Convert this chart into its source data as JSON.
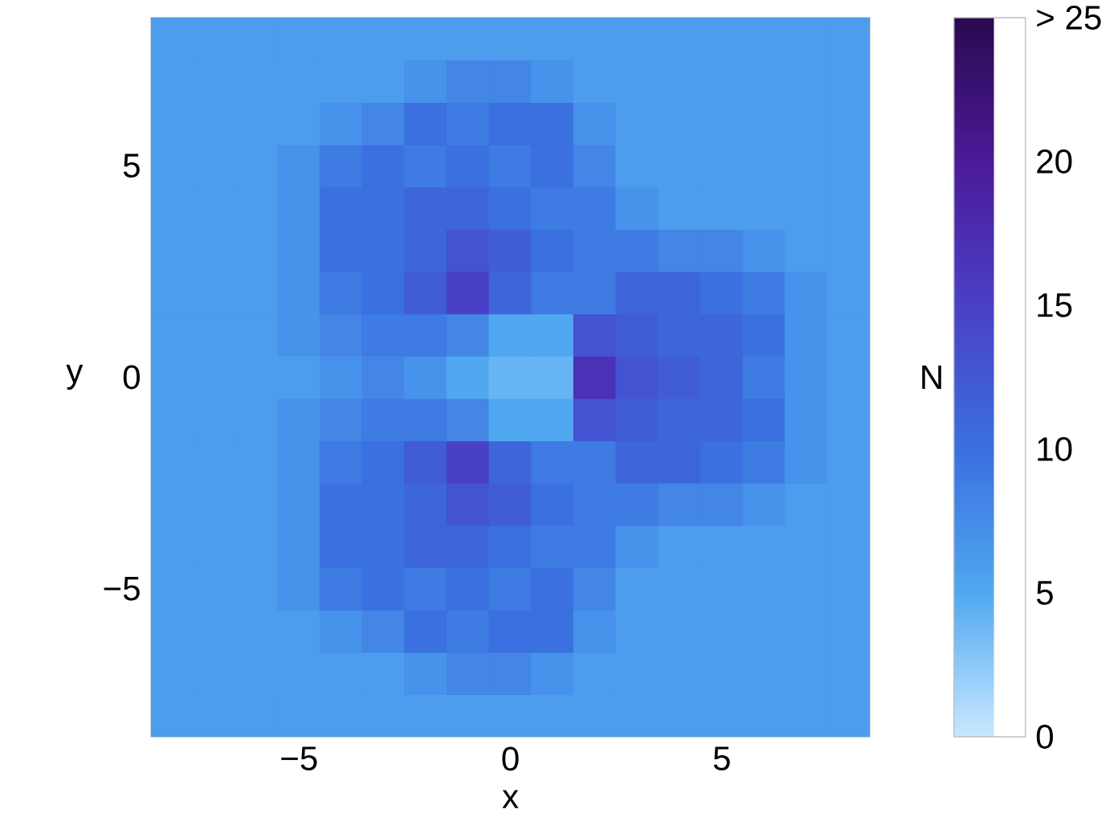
{
  "chart_data": {
    "type": "heatmap",
    "xlabel": "x",
    "ylabel": "y",
    "clabel": "N",
    "categories": [
      null,
      null,
      null,
      "−5",
      null,
      null,
      null,
      null,
      "0",
      null,
      null,
      null,
      null,
      "5",
      null,
      null,
      null
    ],
    "y_categories": [
      null,
      null,
      null,
      "5",
      null,
      null,
      null,
      null,
      "0",
      null,
      null,
      null,
      null,
      "−5",
      null,
      null,
      null
    ],
    "clim": [
      0,
      25
    ],
    "cticks": [
      0,
      5,
      10,
      15,
      20,
      {
        "value": 25,
        "label": "> 25"
      }
    ],
    "cells": [
      [
        6,
        6,
        6,
        6,
        6,
        6,
        6,
        6,
        6,
        6,
        6,
        6,
        6,
        6,
        6,
        6,
        6
      ],
      [
        6,
        6,
        6,
        6,
        6,
        6,
        7,
        8,
        8,
        7,
        6,
        6,
        6,
        6,
        6,
        6,
        6
      ],
      [
        6,
        6,
        6,
        6,
        7,
        8,
        10,
        9,
        10,
        10,
        7,
        6,
        6,
        6,
        6,
        6,
        6
      ],
      [
        6,
        6,
        6,
        7,
        9,
        10,
        9,
        10,
        9,
        10,
        8,
        6,
        6,
        6,
        6,
        6,
        6
      ],
      [
        6,
        6,
        6,
        7,
        10,
        10,
        11,
        11,
        10,
        9,
        9,
        7,
        6,
        6,
        6,
        6,
        6
      ],
      [
        6,
        6,
        6,
        7,
        10,
        10,
        11,
        13,
        12,
        10,
        9,
        9,
        8,
        8,
        7,
        6,
        6
      ],
      [
        6,
        6,
        6,
        7,
        9,
        10,
        12,
        15,
        11,
        9,
        9,
        11,
        11,
        10,
        9,
        7,
        6
      ],
      [
        6,
        6,
        6,
        7,
        8,
        9,
        9,
        8,
        5,
        5,
        13,
        12,
        11,
        11,
        10,
        7,
        6
      ],
      [
        6,
        6,
        6,
        6,
        7,
        8,
        7,
        5,
        4,
        4,
        17,
        13,
        12,
        11,
        9,
        7,
        6
      ],
      [
        6,
        6,
        6,
        7,
        8,
        9,
        9,
        8,
        5,
        5,
        13,
        12,
        11,
        11,
        10,
        7,
        6
      ],
      [
        6,
        6,
        6,
        7,
        9,
        10,
        12,
        15,
        11,
        9,
        9,
        11,
        11,
        10,
        9,
        7,
        6
      ],
      [
        6,
        6,
        6,
        7,
        10,
        10,
        11,
        13,
        12,
        10,
        9,
        9,
        8,
        8,
        7,
        6,
        6
      ],
      [
        6,
        6,
        6,
        7,
        10,
        10,
        11,
        11,
        10,
        9,
        9,
        7,
        6,
        6,
        6,
        6,
        6
      ],
      [
        6,
        6,
        6,
        7,
        9,
        10,
        9,
        10,
        9,
        10,
        8,
        6,
        6,
        6,
        6,
        6,
        6
      ],
      [
        6,
        6,
        6,
        6,
        7,
        8,
        10,
        9,
        10,
        10,
        7,
        6,
        6,
        6,
        6,
        6,
        6
      ],
      [
        6,
        6,
        6,
        6,
        6,
        6,
        7,
        8,
        8,
        7,
        6,
        6,
        6,
        6,
        6,
        6,
        6
      ],
      [
        6,
        6,
        6,
        6,
        6,
        6,
        6,
        6,
        6,
        6,
        6,
        6,
        6,
        6,
        6,
        6,
        6
      ]
    ]
  }
}
